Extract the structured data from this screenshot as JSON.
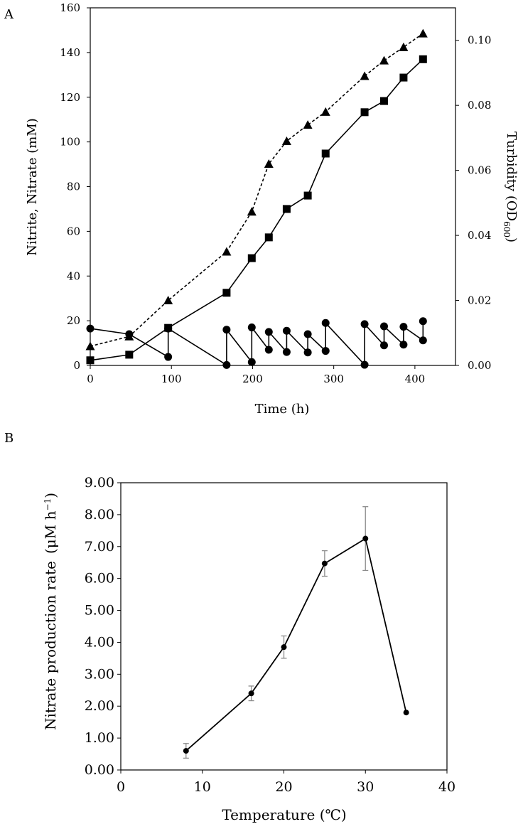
{
  "figure": {
    "panel_a_label": "A",
    "panel_b_label": "B"
  },
  "chart_data": [
    {
      "id": "A",
      "type": "line",
      "xlabel": "Time (h)",
      "ylabel": "Nitrite, Nitrate (mM)",
      "y2label": "Turbidity (OD",
      "y2label_sub": "600",
      "y2label_end": ")",
      "xlim": [
        0,
        450
      ],
      "ylim": [
        0,
        160
      ],
      "y2lim": [
        0,
        0.11
      ],
      "xticks": [
        "0",
        "100",
        "200",
        "300",
        "400"
      ],
      "xtick_values": [
        0,
        100,
        200,
        300,
        400
      ],
      "yticks": [
        "0",
        "20",
        "40",
        "60",
        "80",
        "100",
        "120",
        "140",
        "160"
      ],
      "ytick_values": [
        0,
        20,
        40,
        60,
        80,
        100,
        120,
        140,
        160
      ],
      "y2ticks": [
        "0.00",
        "0.02",
        "0.04",
        "0.06",
        "0.08",
        "0.10"
      ],
      "y2tick_values": [
        0,
        0.02,
        0.04,
        0.06,
        0.08,
        0.1
      ],
      "series": [
        {
          "name": "Nitrite",
          "marker": "circle",
          "line": "solid",
          "axis": "left",
          "x": [
            0,
            48,
            96,
            96,
            168,
            168,
            199,
            199,
            220,
            220,
            242,
            242,
            268,
            268,
            290,
            290,
            338,
            338,
            362,
            362,
            386,
            386,
            410,
            410
          ],
          "y": [
            16.5,
            14.0,
            3.8,
            16.5,
            0.2,
            16.0,
            1.5,
            17.0,
            7.0,
            15.0,
            6.0,
            15.5,
            5.8,
            14.0,
            6.5,
            19.0,
            0.3,
            18.5,
            9.0,
            17.5,
            9.3,
            17.3,
            11.2,
            19.8
          ]
        },
        {
          "name": "Nitrate",
          "marker": "square",
          "line": "solid",
          "axis": "left",
          "x": [
            0,
            48,
            96,
            168,
            199,
            220,
            242,
            268,
            290,
            338,
            362,
            386,
            410
          ],
          "y": [
            2.3,
            4.8,
            16.8,
            32.5,
            48.0,
            57.3,
            70.0,
            76.0,
            94.8,
            113.3,
            118.3,
            128.8,
            137.0
          ]
        },
        {
          "name": "Turbidity",
          "marker": "triangle",
          "line": "dashed",
          "axis": "right",
          "x": [
            0,
            48,
            96,
            168,
            199,
            220,
            242,
            268,
            290,
            338,
            362,
            386,
            410
          ],
          "y": [
            0.0059,
            0.0089,
            0.02,
            0.035,
            0.0473,
            0.062,
            0.069,
            0.074,
            0.078,
            0.089,
            0.0938,
            0.0979,
            0.1021
          ]
        }
      ]
    },
    {
      "id": "B",
      "type": "line",
      "xlabel": "Temperature (℃)",
      "ylabel": "Nitrate production rate",
      "ylabel_unit": "(μM h",
      "ylabel_unit_sup": "−1",
      "ylabel_unit_end": ")",
      "xlim": [
        0,
        40
      ],
      "ylim": [
        0,
        9
      ],
      "xticks": [
        "0",
        "10",
        "20",
        "30",
        "40"
      ],
      "xtick_values": [
        0,
        10,
        20,
        30,
        40
      ],
      "yticks": [
        "0.00",
        "1.00",
        "2.00",
        "3.00",
        "4.00",
        "5.00",
        "6.00",
        "7.00",
        "8.00",
        "9.00"
      ],
      "ytick_values": [
        0,
        1,
        2,
        3,
        4,
        5,
        6,
        7,
        8,
        9
      ],
      "series": [
        {
          "name": "Nitrate production rate",
          "marker": "circle",
          "x": [
            8,
            16,
            20,
            25,
            30,
            35
          ],
          "y": [
            0.6,
            2.4,
            3.85,
            6.47,
            7.25,
            1.8
          ],
          "error": [
            0.23,
            0.23,
            0.35,
            0.4,
            1.0,
            0
          ]
        }
      ]
    }
  ]
}
